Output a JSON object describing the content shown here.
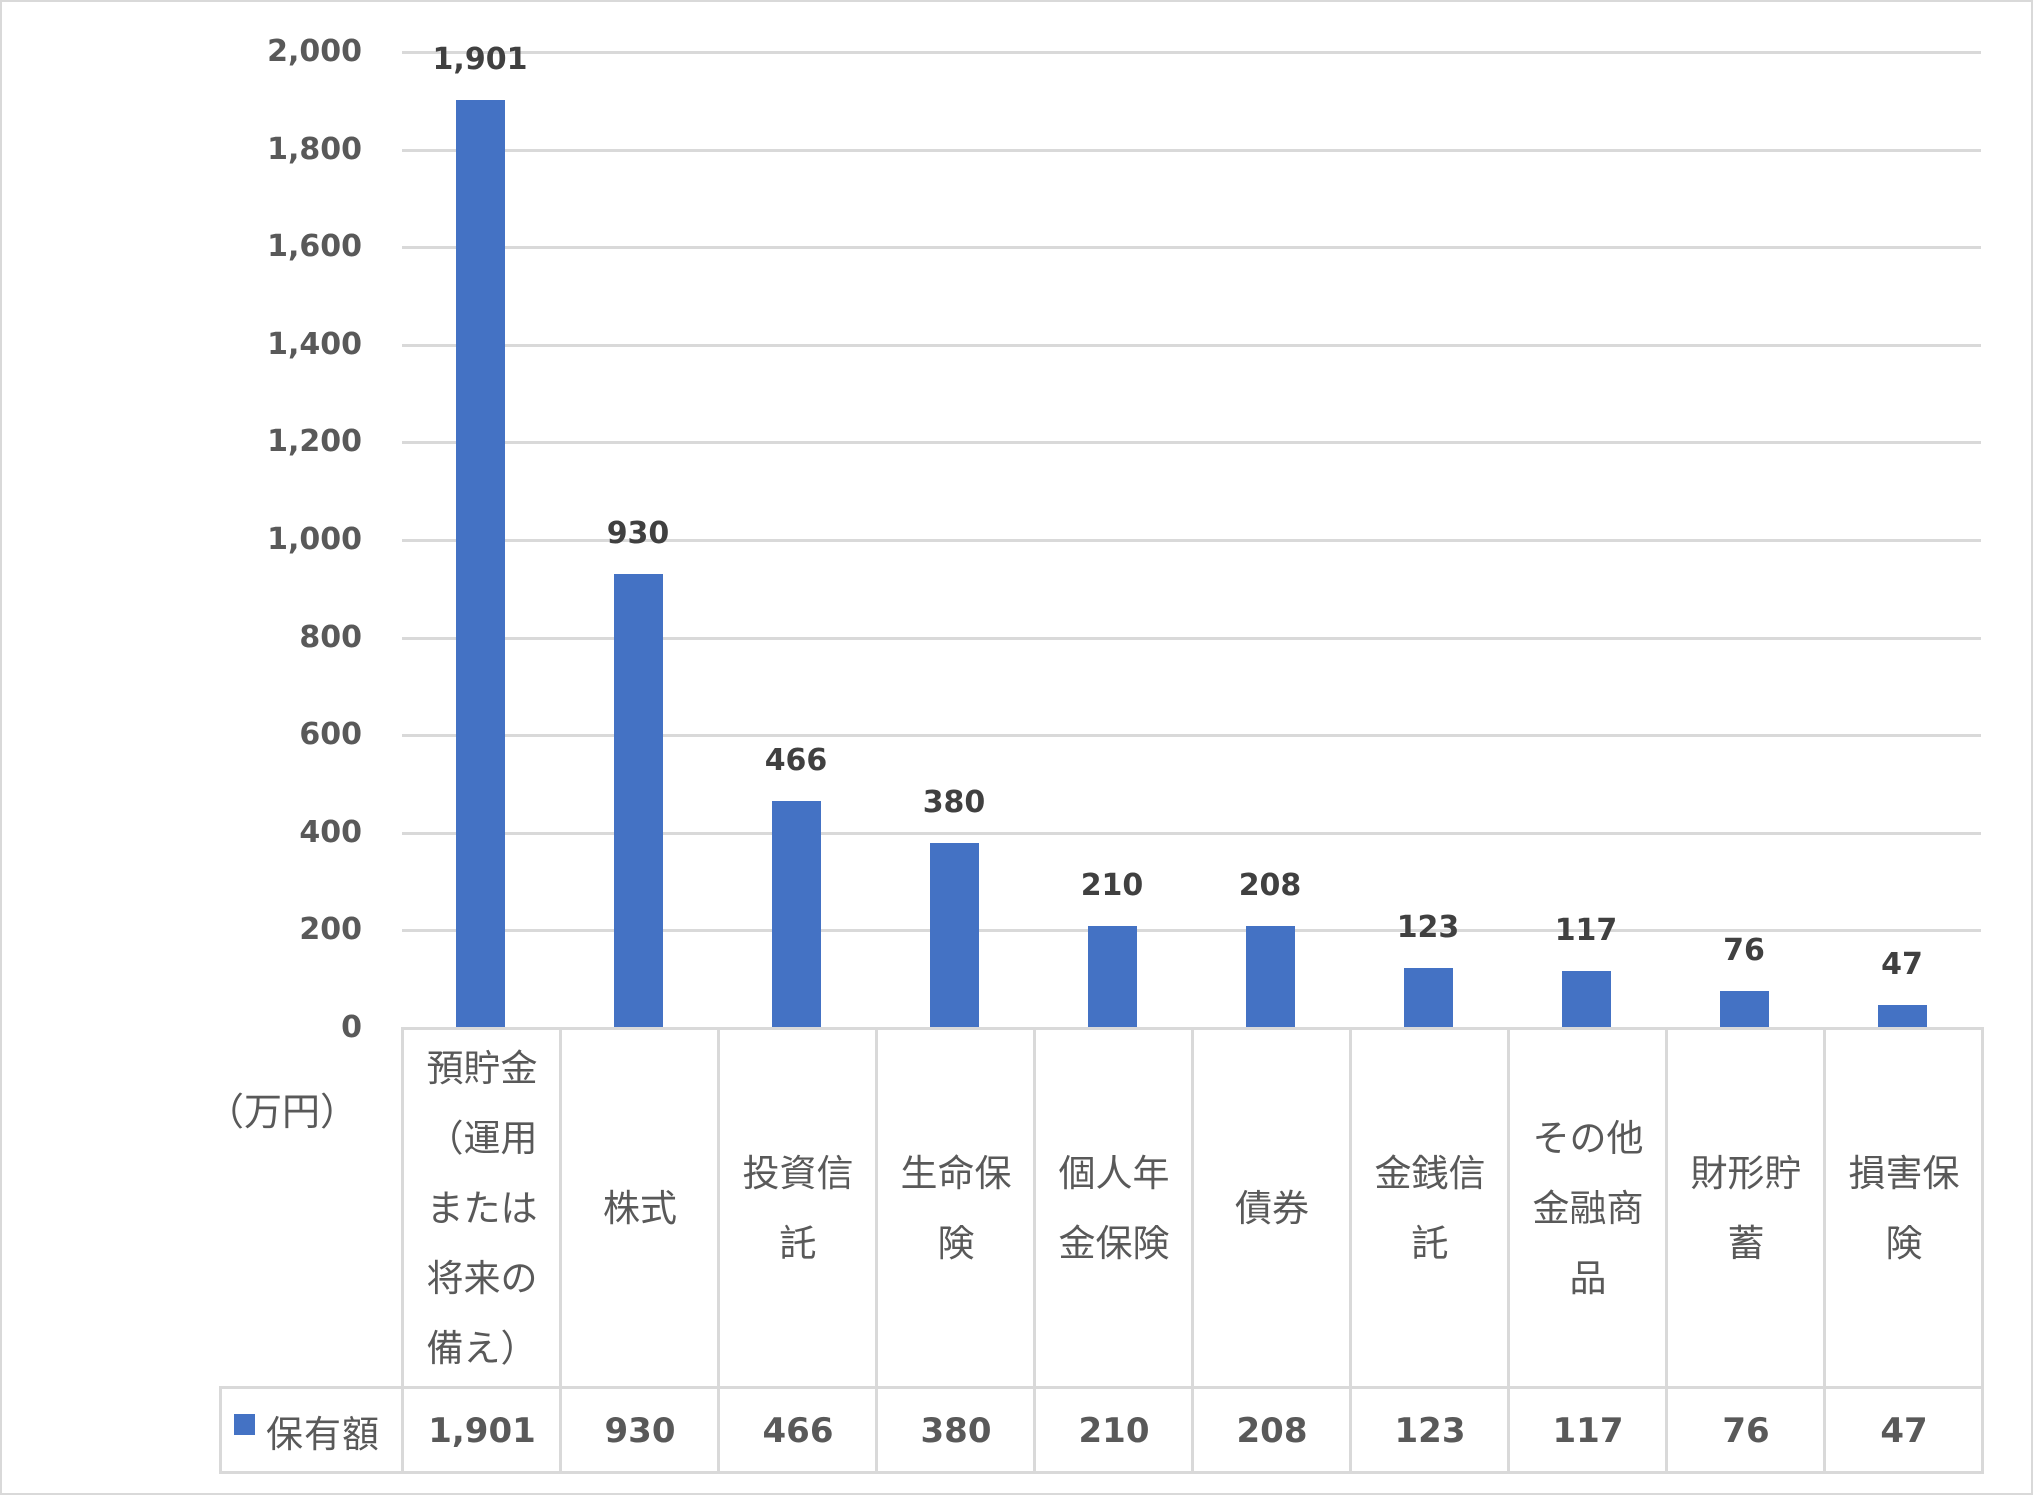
{
  "chart_data": {
    "type": "bar",
    "title": "",
    "xlabel": "",
    "ylabel": "（万円）",
    "ylim": [
      0,
      2000
    ],
    "yticks": [
      "0",
      "200",
      "400",
      "600",
      "800",
      "1,000",
      "1,200",
      "1,400",
      "1,600",
      "1,800",
      "2,000"
    ],
    "grid": true,
    "legend_position": "data-table",
    "categories": [
      "預貯金（運用または将来の備え）",
      "株式",
      "投資信託",
      "生命保険",
      "個人年金保険",
      "債券",
      "金銭信託",
      "その他金融商品",
      "財形貯蓄",
      "損害保険"
    ],
    "series": [
      {
        "name": "保有額",
        "color": "#4472c4",
        "values": [
          1901,
          930,
          466,
          380,
          210,
          208,
          123,
          117,
          76,
          47
        ],
        "labels": [
          "1,901",
          "930",
          "466",
          "380",
          "210",
          "208",
          "123",
          "117",
          "76",
          "47"
        ]
      }
    ]
  },
  "axis": {
    "unit_label": "（万円）",
    "ticks": [
      "2,000",
      "1,800",
      "1,600",
      "1,400",
      "1,200",
      "1,000",
      "800",
      "600",
      "400",
      "200",
      "0"
    ]
  },
  "table": {
    "legend_label": "保有額",
    "categories": [
      "預貯金（運用または将来の備え）",
      "株式",
      "投資信託",
      "生命保険",
      "個人年金保険",
      "債券",
      "金銭信託",
      "その他金融商品",
      "財形貯蓄",
      "損害保険"
    ],
    "values": [
      "1,901",
      "930",
      "466",
      "380",
      "210",
      "208",
      "123",
      "117",
      "76",
      "47"
    ]
  },
  "colors": {
    "bar": "#4472c4",
    "grid": "#d9d9d9",
    "text": "#595959",
    "data_label": "#404040"
  }
}
